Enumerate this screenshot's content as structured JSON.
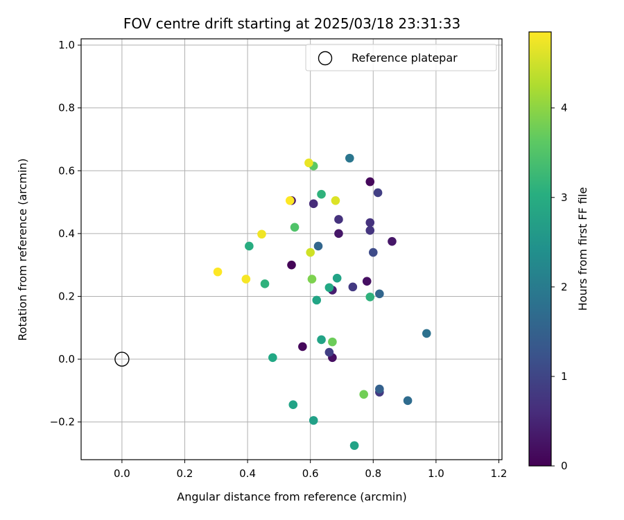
{
  "chart_data": {
    "type": "scatter",
    "title": "FOV centre drift starting at 2025/03/18 23:31:33",
    "xlabel": "Angular distance from reference (arcmin)",
    "ylabel": "Rotation from reference (arcmin)",
    "xlim": [
      -0.13,
      1.21
    ],
    "ylim": [
      -0.32,
      1.02
    ],
    "xticks": [
      0.0,
      0.2,
      0.4,
      0.6,
      0.8,
      1.0,
      1.2
    ],
    "yticks": [
      -0.2,
      0.0,
      0.2,
      0.4,
      0.6,
      0.8,
      1.0
    ],
    "xtick_labels": [
      "0.0",
      "0.2",
      "0.4",
      "0.6",
      "0.8",
      "1.0",
      "1.2"
    ],
    "ytick_labels": [
      "−0.2",
      "0.0",
      "0.2",
      "0.4",
      "0.6",
      "0.8",
      "1.0"
    ],
    "grid": true,
    "legend": {
      "position": "top-right",
      "entries": [
        {
          "label": "Reference platepar",
          "marker": "open-circle"
        }
      ]
    },
    "reference_point": {
      "x": 0.0,
      "y": 0.0
    },
    "colorbar": {
      "label": "Hours from first FF file",
      "range": [
        0,
        4.85
      ],
      "ticks": [
        0,
        1,
        2,
        3,
        4
      ],
      "tick_labels": [
        "0",
        "1",
        "2",
        "3",
        "4"
      ],
      "colormap": "viridis"
    },
    "points": [
      {
        "x": 0.54,
        "y": 0.3,
        "hours": 0.05
      },
      {
        "x": 0.575,
        "y": 0.04,
        "hours": 0.1
      },
      {
        "x": 0.67,
        "y": 0.005,
        "hours": 0.2
      },
      {
        "x": 0.79,
        "y": 0.565,
        "hours": 0.1
      },
      {
        "x": 0.69,
        "y": 0.4,
        "hours": 0.3
      },
      {
        "x": 0.78,
        "y": 0.248,
        "hours": 0.2
      },
      {
        "x": 0.67,
        "y": 0.22,
        "hours": 0.4
      },
      {
        "x": 0.86,
        "y": 0.375,
        "hours": 0.3
      },
      {
        "x": 0.54,
        "y": 0.505,
        "hours": 0.3
      },
      {
        "x": 0.61,
        "y": 0.495,
        "hours": 0.6
      },
      {
        "x": 0.69,
        "y": 0.445,
        "hours": 0.7
      },
      {
        "x": 0.79,
        "y": 0.435,
        "hours": 0.7
      },
      {
        "x": 0.79,
        "y": 0.41,
        "hours": 0.75
      },
      {
        "x": 0.735,
        "y": 0.23,
        "hours": 0.8
      },
      {
        "x": 0.66,
        "y": 0.022,
        "hours": 0.9
      },
      {
        "x": 0.815,
        "y": 0.53,
        "hours": 0.9
      },
      {
        "x": 0.8,
        "y": 0.34,
        "hours": 1.1
      },
      {
        "x": 0.82,
        "y": -0.105,
        "hours": 0.8
      },
      {
        "x": 0.82,
        "y": -0.095,
        "hours": 1.5
      },
      {
        "x": 0.625,
        "y": 0.36,
        "hours": 1.6
      },
      {
        "x": 0.82,
        "y": 0.208,
        "hours": 1.6
      },
      {
        "x": 0.91,
        "y": -0.132,
        "hours": 1.7
      },
      {
        "x": 0.97,
        "y": 0.082,
        "hours": 1.8
      },
      {
        "x": 0.725,
        "y": 0.64,
        "hours": 1.9
      },
      {
        "x": 0.635,
        "y": 0.062,
        "hours": 2.8
      },
      {
        "x": 0.685,
        "y": 0.258,
        "hours": 2.8
      },
      {
        "x": 0.66,
        "y": 0.228,
        "hours": 2.9
      },
      {
        "x": 0.62,
        "y": 0.188,
        "hours": 2.85
      },
      {
        "x": 0.48,
        "y": 0.005,
        "hours": 2.9
      },
      {
        "x": 0.545,
        "y": -0.145,
        "hours": 2.8
      },
      {
        "x": 0.61,
        "y": -0.195,
        "hours": 2.75
      },
      {
        "x": 0.74,
        "y": -0.275,
        "hours": 2.8
      },
      {
        "x": 0.405,
        "y": 0.36,
        "hours": 3.0
      },
      {
        "x": 0.455,
        "y": 0.24,
        "hours": 3.1
      },
      {
        "x": 0.635,
        "y": 0.525,
        "hours": 3.1
      },
      {
        "x": 0.79,
        "y": 0.198,
        "hours": 3.1
      },
      {
        "x": 0.55,
        "y": 0.42,
        "hours": 3.5
      },
      {
        "x": 0.61,
        "y": 0.615,
        "hours": 3.6
      },
      {
        "x": 0.67,
        "y": 0.055,
        "hours": 3.75
      },
      {
        "x": 0.77,
        "y": -0.112,
        "hours": 3.8
      },
      {
        "x": 0.605,
        "y": 0.255,
        "hours": 3.9
      },
      {
        "x": 0.6,
        "y": 0.34,
        "hours": 4.5
      },
      {
        "x": 0.68,
        "y": 0.505,
        "hours": 4.6
      },
      {
        "x": 0.595,
        "y": 0.625,
        "hours": 4.7
      },
      {
        "x": 0.445,
        "y": 0.398,
        "hours": 4.75
      },
      {
        "x": 0.395,
        "y": 0.255,
        "hours": 4.8
      },
      {
        "x": 0.305,
        "y": 0.278,
        "hours": 4.85
      },
      {
        "x": 0.535,
        "y": 0.505,
        "hours": 4.85
      }
    ]
  }
}
